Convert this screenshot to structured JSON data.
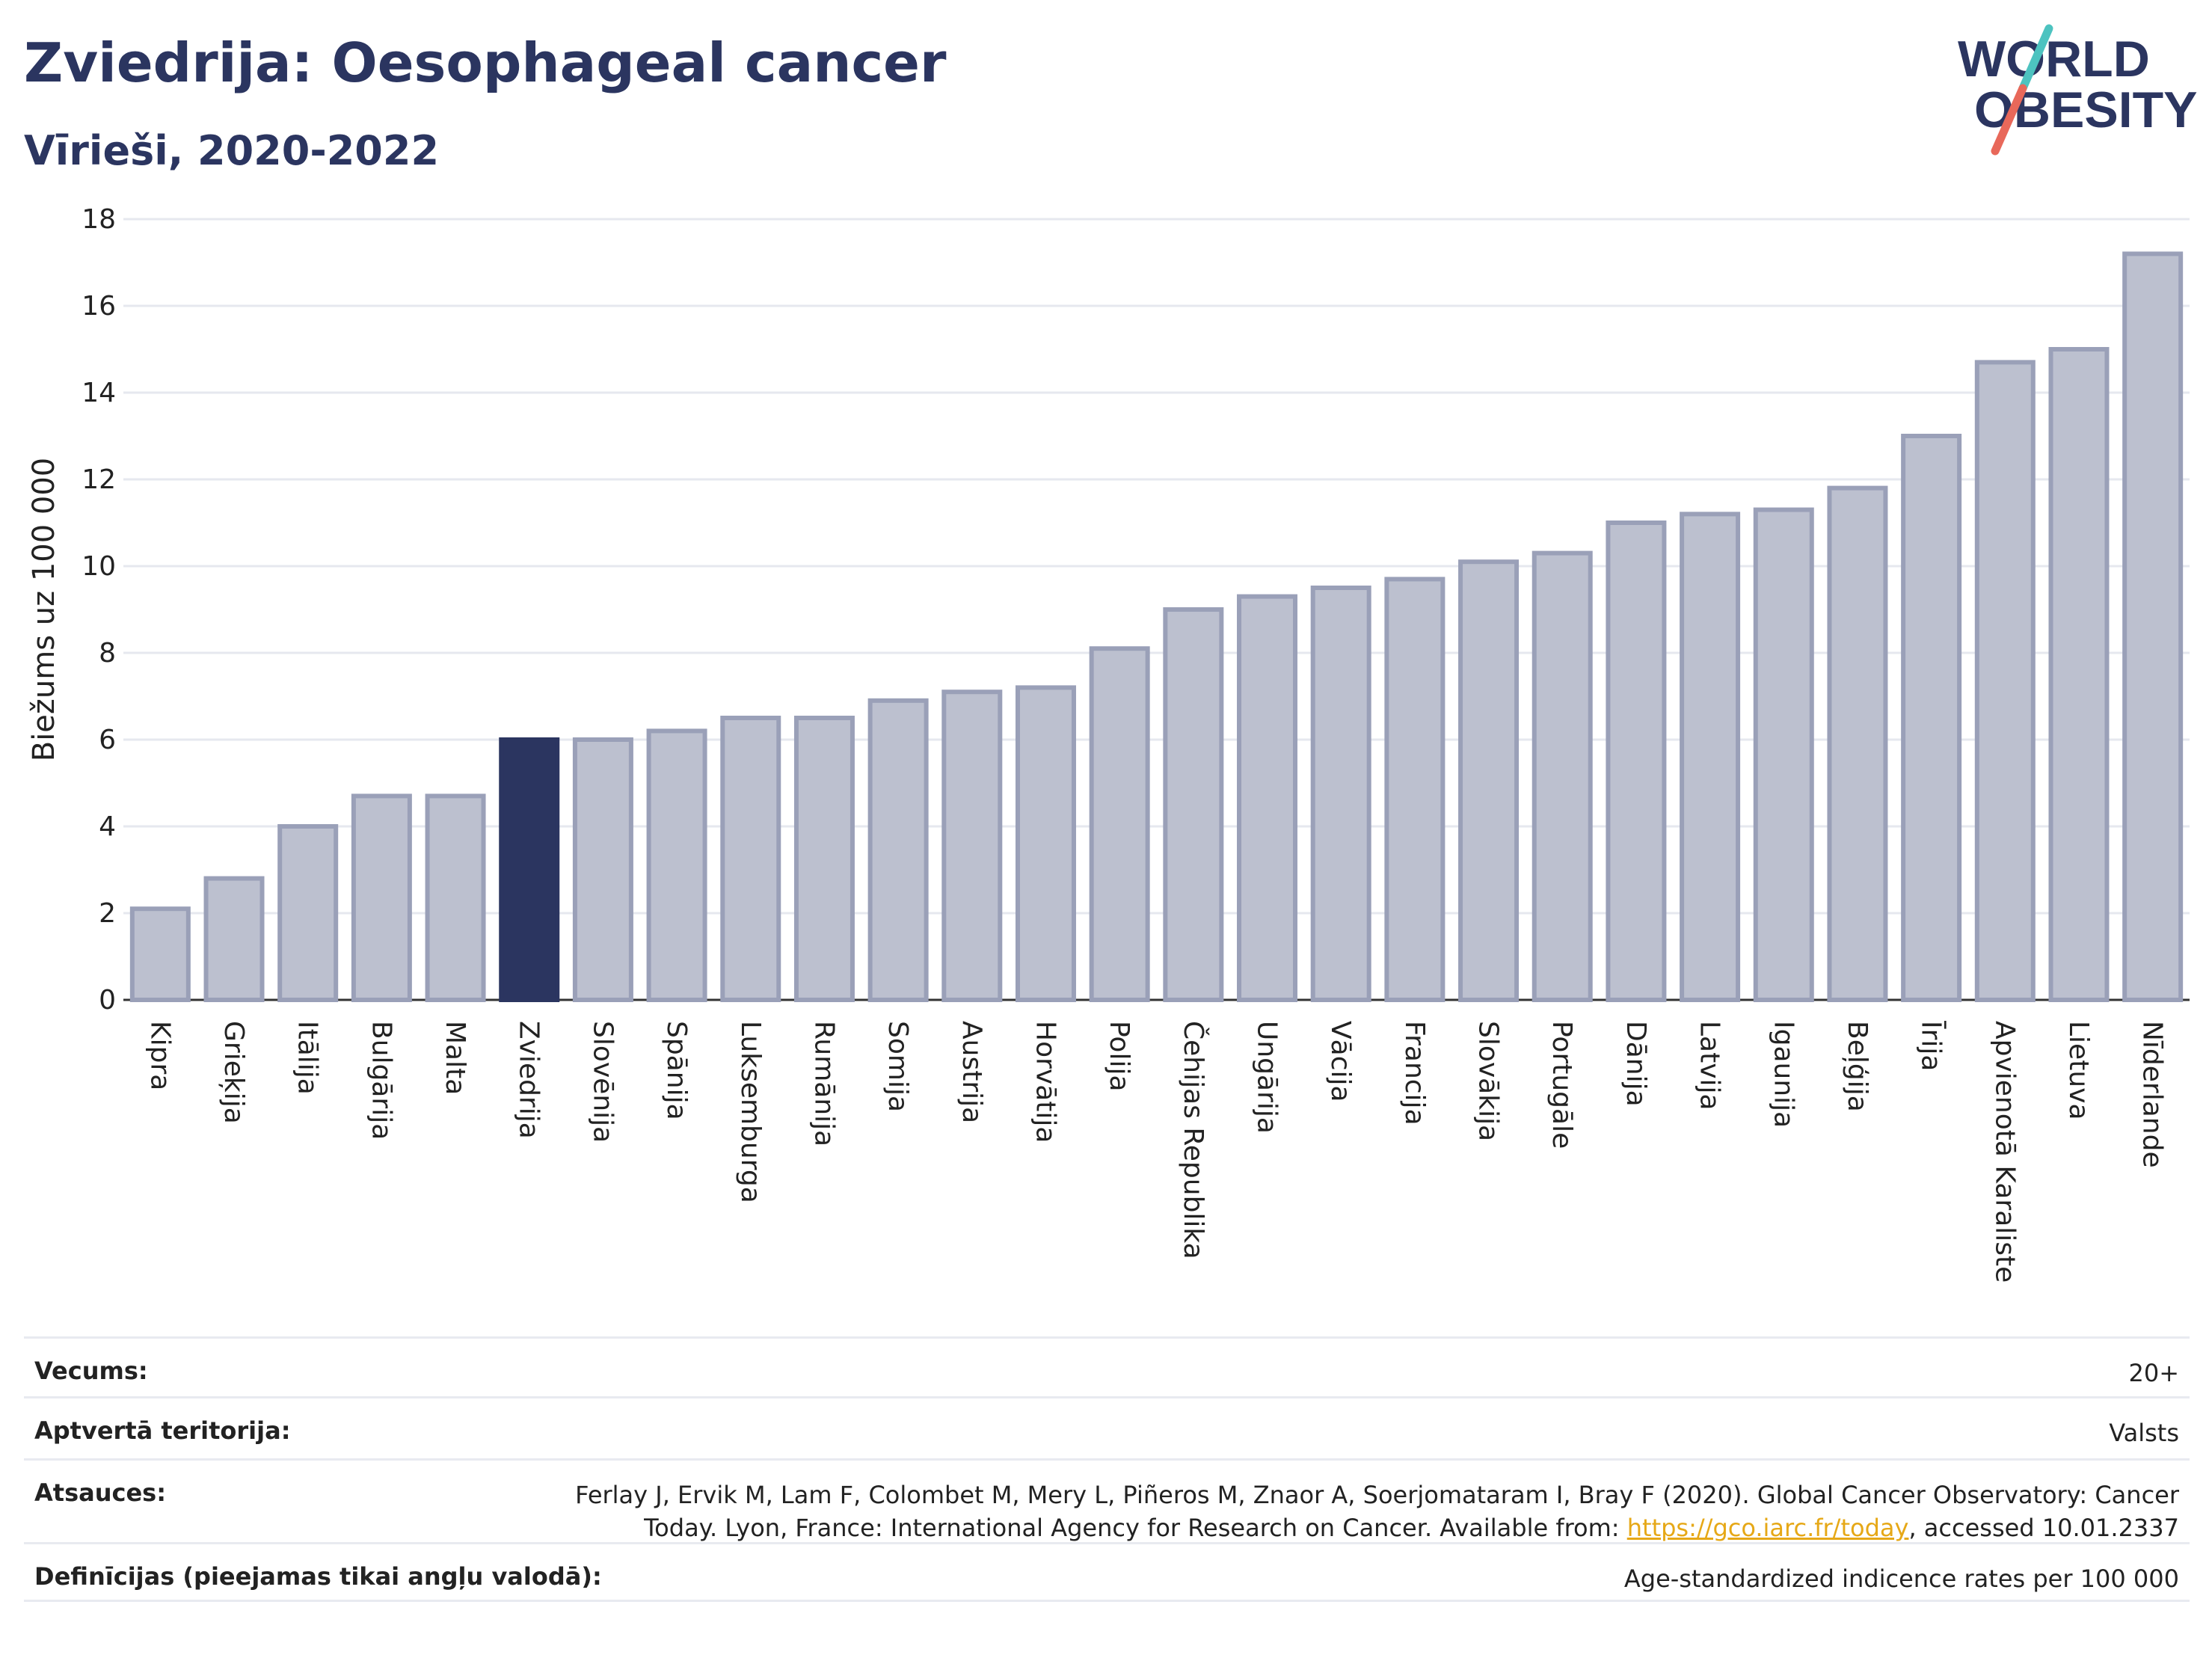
{
  "header": {
    "title": "Zviedrija: Oesophageal cancer",
    "subtitle": "Vīrieši, 2020-2022"
  },
  "logo": {
    "line1": "WORLD",
    "line2": "OBESITY",
    "slash_colors": [
      "#4dc3c0",
      "#e8685a"
    ]
  },
  "colors": {
    "bar": "#bcc0cf",
    "bar_border": "#9aa0b8",
    "highlight": "#2b3560",
    "grid": "#e6e8ef",
    "text": "#2b3560"
  },
  "chart_data": {
    "type": "bar",
    "ylabel": "Biežums uz 100 000",
    "ylim": [
      0,
      18
    ],
    "yticks": [
      0,
      2,
      4,
      6,
      8,
      10,
      12,
      14,
      16,
      18
    ],
    "grid": true,
    "highlight": "Zviedrija",
    "categories": [
      "Kipra",
      "Grieķija",
      "Itālija",
      "Bulgārija",
      "Malta",
      "Zviedrija",
      "Slovēnija",
      "Spānija",
      "Luksemburga",
      "Rumānija",
      "Somija",
      "Austrija",
      "Horvātija",
      "Polija",
      "Čehijas Republika",
      "Ungārija",
      "Vācija",
      "Francija",
      "Slovākija",
      "Portugāle",
      "Dānija",
      "Latvija",
      "Igaunija",
      "Beļģija",
      "Īrija",
      "Apvienotā Karaliste",
      "Lietuva",
      "Nīderlande"
    ],
    "values": [
      2.1,
      2.8,
      4.0,
      4.7,
      4.7,
      6.0,
      6.0,
      6.2,
      6.5,
      6.5,
      6.9,
      7.1,
      7.2,
      8.1,
      9.0,
      9.3,
      9.5,
      9.7,
      10.1,
      10.3,
      11.0,
      11.2,
      11.3,
      11.8,
      13.0,
      14.7,
      15.0,
      17.2
    ]
  },
  "meta": {
    "age_label": "Vecums:",
    "age_value": "20+",
    "territory_label": "Aptvertā teritorija:",
    "territory_value": "Valsts",
    "refs_label": "Atsauces:",
    "refs_line1": "Ferlay J, Ervik M, Lam F, Colombet M, Mery L, Piñeros M, Znaor A, Soerjomataram I, Bray F (2020). Global Cancer Observatory: Cancer",
    "refs_line2_pre": "Today. Lyon, France: International Agency for Research on Cancer. Available from: ",
    "refs_link": "https://gco.iarc.fr/today",
    "refs_line2_post": ", accessed 10.01.2337",
    "def_label": "Definīcijas (pieejamas tikai angļu valodā):",
    "def_value": "Age-standardized indicence rates per 100 000"
  }
}
